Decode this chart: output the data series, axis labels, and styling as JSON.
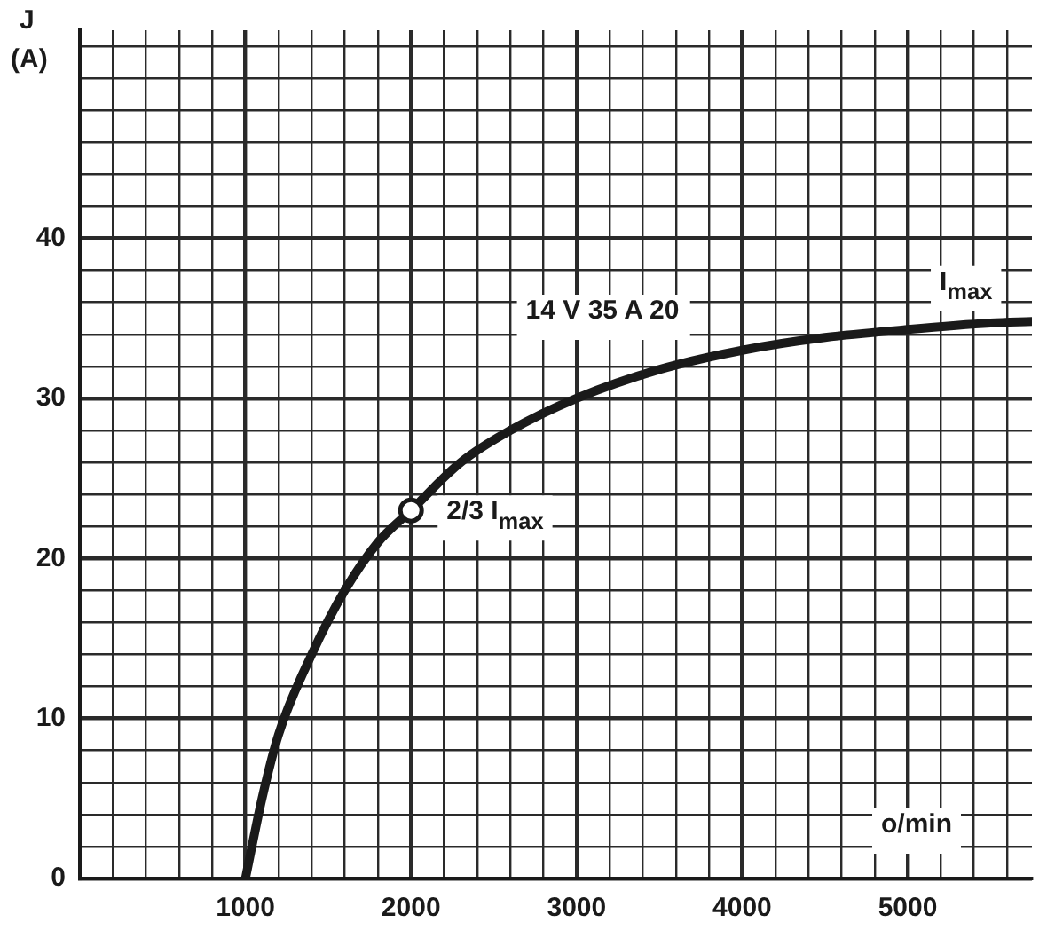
{
  "chart_data": {
    "type": "line",
    "xlabel": "o/min",
    "ylabel": "J (A)",
    "xlim": [
      0,
      5750
    ],
    "ylim": [
      0,
      53
    ],
    "xticks": [
      {
        "value": 0,
        "label": null
      },
      {
        "value": 200,
        "label": null
      },
      {
        "value": 400,
        "label": null
      },
      {
        "value": 600,
        "label": null
      },
      {
        "value": 800,
        "label": null
      },
      1000,
      {
        "value": 1200,
        "label": null
      },
      {
        "value": 1400,
        "label": null
      },
      {
        "value": 1600,
        "label": null
      },
      {
        "value": 1800,
        "label": null
      },
      2000,
      {
        "value": 2200,
        "label": null
      },
      {
        "value": 2400,
        "label": null
      },
      {
        "value": 2600,
        "label": null
      },
      {
        "value": 2800,
        "label": null
      },
      3000,
      {
        "value": 3200,
        "label": null
      },
      {
        "value": 3400,
        "label": null
      },
      {
        "value": 3600,
        "label": null
      },
      {
        "value": 3800,
        "label": null
      },
      4000,
      {
        "value": 4200,
        "label": null
      },
      {
        "value": 4400,
        "label": null
      },
      {
        "value": 4600,
        "label": null
      },
      {
        "value": 4800,
        "label": null
      },
      5000,
      {
        "value": 5200,
        "label": null
      },
      {
        "value": 5400,
        "label": null
      },
      {
        "value": 5600,
        "label": null
      }
    ],
    "yticks": [
      0,
      {
        "value": 2,
        "label": null
      },
      {
        "value": 4,
        "label": null
      },
      {
        "value": 6,
        "label": null
      },
      {
        "value": 8,
        "label": null
      },
      10,
      {
        "value": 12,
        "label": null
      },
      {
        "value": 14,
        "label": null
      },
      {
        "value": 16,
        "label": null
      },
      {
        "value": 18,
        "label": null
      },
      20,
      {
        "value": 22,
        "label": null
      },
      {
        "value": 24,
        "label": null
      },
      {
        "value": 26,
        "label": null
      },
      {
        "value": 28,
        "label": null
      },
      30,
      {
        "value": 32,
        "label": null
      },
      {
        "value": 34,
        "label": null
      },
      {
        "value": 36,
        "label": null
      },
      {
        "value": 38,
        "label": null
      },
      40,
      {
        "value": 42,
        "label": null
      },
      {
        "value": 44,
        "label": null
      },
      {
        "value": 46,
        "label": null
      },
      {
        "value": 48,
        "label": null
      },
      {
        "value": 50,
        "label": null
      },
      {
        "value": 52,
        "label": null
      }
    ],
    "grid": true,
    "legend": false,
    "series": [
      {
        "type": "line",
        "color": "#1a1a1a",
        "marker": "none",
        "line_style": "solid",
        "x": [
          1000,
          1100,
          1200,
          1400,
          1600,
          1800,
          2000,
          2300,
          2600,
          3000,
          3500,
          4000,
          4500,
          5000,
          5500,
          5750
        ],
        "values": [
          0,
          5,
          9,
          14,
          18,
          21,
          23,
          26,
          28,
          30,
          31.8,
          33,
          33.8,
          34.3,
          34.7,
          34.8
        ]
      },
      {
        "type": "scatter",
        "color": "#1a1a1a",
        "marker": "circle",
        "x": [
          2000
        ],
        "values": [
          23
        ]
      }
    ],
    "annotations": [
      {
        "text": "2/3 I$_{max}$",
        "x": 2000,
        "y": 23
      },
      {
        "text": "I$_{max}$",
        "x": 5300,
        "y": 35
      },
      "14 V 35 A 20"
    ]
  }
}
